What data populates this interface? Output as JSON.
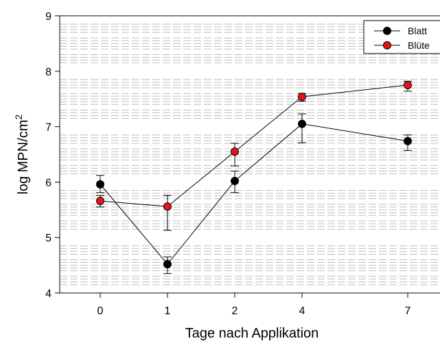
{
  "chart_data": {
    "type": "line",
    "xlabel": "Tage nach Applikation",
    "ylabel_base": "log MPN/cm",
    "ylabel_sup": "2",
    "categories": [
      "0",
      "1",
      "2",
      "4",
      "7"
    ],
    "yticks": [
      "4",
      "5",
      "6",
      "7",
      "8",
      "9"
    ],
    "ylim": [
      4,
      9
    ],
    "grid": "horizontal dashed minor lines",
    "legend_position": "top-right",
    "series": [
      {
        "name": "Blatt",
        "color": "#000000",
        "values": [
          5.96,
          4.52,
          6.02,
          7.05,
          6.74
        ],
        "err_low": [
          5.81,
          4.35,
          5.81,
          6.71,
          6.57
        ],
        "err_high": [
          6.12,
          4.65,
          6.2,
          7.23,
          6.85
        ]
      },
      {
        "name": "Blüte",
        "color": "#e8121a",
        "values": [
          5.66,
          5.56,
          6.55,
          7.54,
          7.75
        ],
        "err_low": [
          5.55,
          5.13,
          6.29,
          7.46,
          7.64
        ],
        "err_high": [
          5.76,
          5.76,
          6.7,
          7.6,
          7.82
        ]
      }
    ]
  }
}
